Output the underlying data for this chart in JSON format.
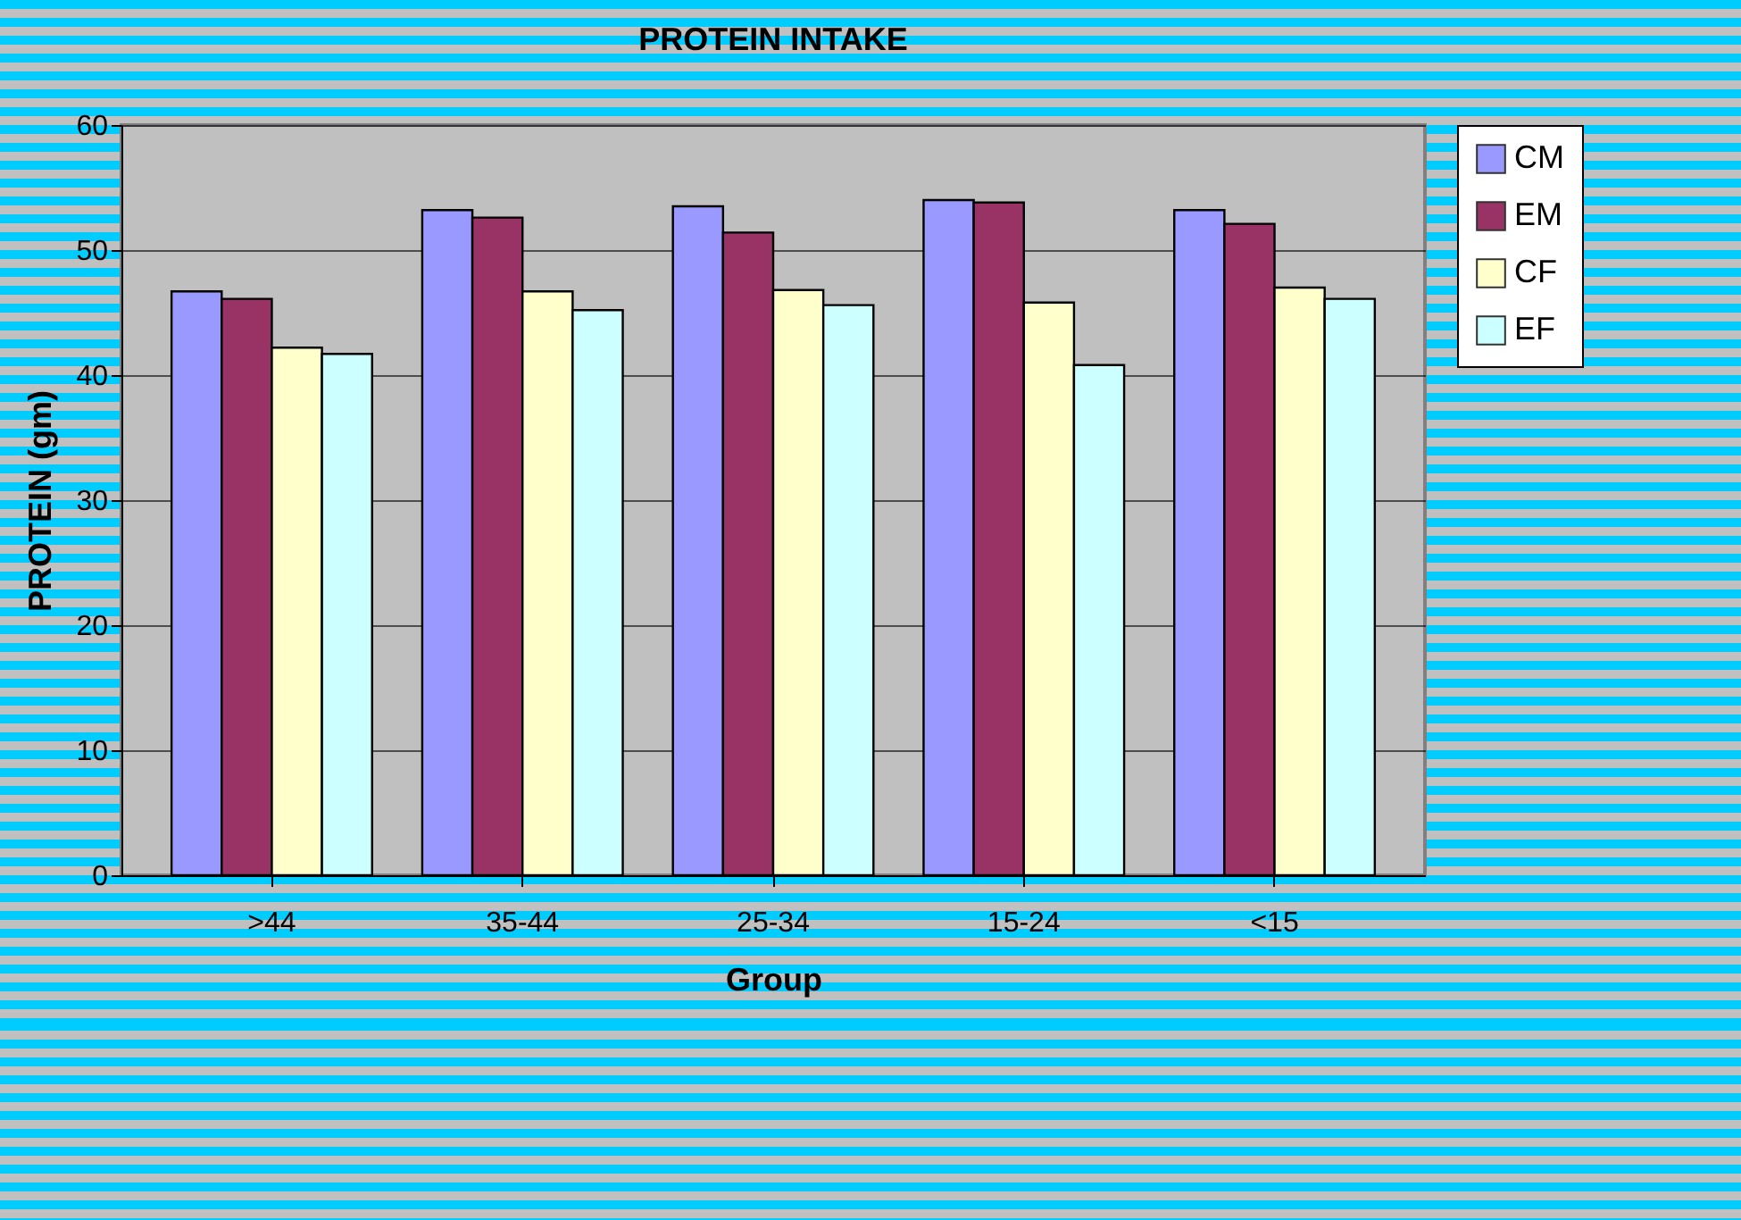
{
  "chart_data": {
    "type": "bar",
    "title": "PROTEIN INTAKE",
    "xlabel": "Group",
    "ylabel": "PROTEIN (gm)",
    "categories": [
      ">44",
      "35-44",
      "25-34",
      "15-24",
      "<15"
    ],
    "series": [
      {
        "name": "CM",
        "color": "#9999ff",
        "values": [
          46.7,
          53.2,
          53.5,
          54.0,
          53.2
        ]
      },
      {
        "name": "EM",
        "color": "#993366",
        "values": [
          46.1,
          52.6,
          51.4,
          53.8,
          52.1
        ]
      },
      {
        "name": "CF",
        "color": "#ffffcc",
        "values": [
          42.2,
          46.7,
          46.8,
          45.8,
          47.0
        ]
      },
      {
        "name": "EF",
        "color": "#ccffff",
        "values": [
          41.7,
          45.2,
          45.6,
          40.8,
          46.1
        ]
      }
    ],
    "ylim": [
      0,
      60
    ],
    "yticks": [
      0,
      10,
      20,
      30,
      40,
      50,
      60
    ],
    "grid": "y",
    "legend": "right"
  }
}
